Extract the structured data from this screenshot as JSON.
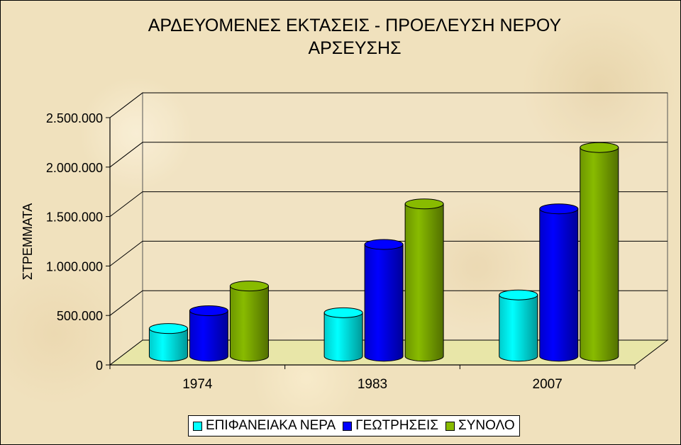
{
  "chart_data": {
    "type": "bar",
    "title": [
      "ΑΡΔΕΥΟΜΕΝΕΣ ΕΚΤΑΣΕΙΣ  - ΠΡΟΕΛΕΥΣΗ ΝΕΡΟΥ",
      "ΑΡΣΕΥΣΗΣ"
    ],
    "ylabel": "ΣΤΡΕΜΜΑΤΑ",
    "xlabel": "",
    "categories": [
      "1974",
      "1983",
      "2007"
    ],
    "series": [
      {
        "name": "ΕΠΙΦΑΝΕΙΑΚΑ ΝΕΡΑ",
        "values": [
          280000,
          440000,
          620000
        ],
        "color": "#00ffff"
      },
      {
        "name": "ΓΕΩΤΡΗΣΕΙΣ",
        "values": [
          460000,
          1130000,
          1490000
        ],
        "color": "#0000ff"
      },
      {
        "name": "ΣΥΝΟΛΟ",
        "values": [
          710000,
          1540000,
          2110000
        ],
        "color": "#88bb00"
      }
    ],
    "ylim": [
      0,
      2500000
    ],
    "yticks": [
      0,
      500000,
      1000000,
      1500000,
      2000000,
      2500000
    ],
    "ytick_labels": [
      "0",
      "500.000",
      "1.000.000",
      "1.500.000",
      "2.000.000",
      "2.500.000"
    ],
    "grid": true,
    "legend_position": "bottom",
    "style": "3d-cylinder"
  }
}
